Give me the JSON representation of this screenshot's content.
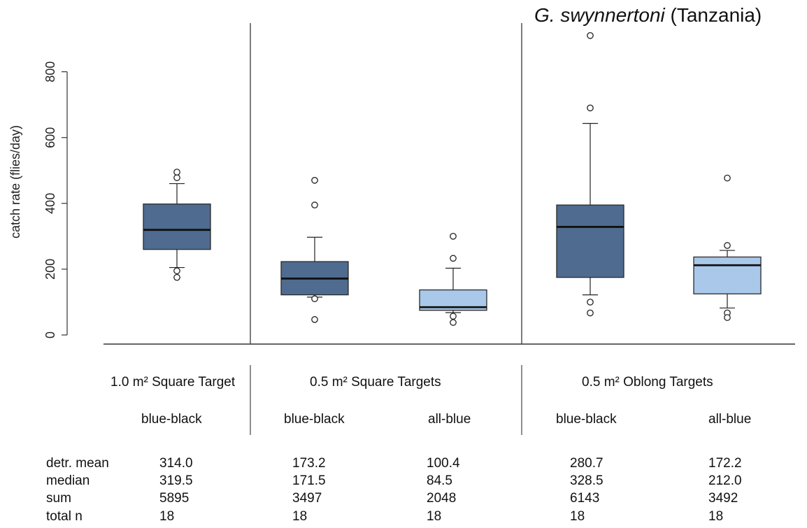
{
  "title": {
    "italic": "G. swynnertoni",
    "plain": " (Tanzania)"
  },
  "chart_data": {
    "type": "box",
    "ylabel": "catch rate (flies/day)",
    "ylim": [
      0,
      900
    ],
    "yticks": [
      0,
      200,
      400,
      600,
      800
    ],
    "groups": [
      {
        "label": "1.0 m² Square Target"
      },
      {
        "label": "0.5 m² Square Targets"
      },
      {
        "label": "0.5 m² Oblong Targets"
      }
    ],
    "boxes": [
      {
        "name": "blue-black",
        "group": 0,
        "color": "#4f6b8f",
        "q1": 260,
        "median": 319.5,
        "q3": 398,
        "whisker_low": 205,
        "whisker_high": 460,
        "outliers": [
          195,
          175,
          478,
          495
        ]
      },
      {
        "name": "blue-black",
        "group": 1,
        "color": "#4f6b8f",
        "q1": 122,
        "median": 171.5,
        "q3": 223,
        "whisker_low": 115,
        "whisker_high": 297,
        "outliers": [
          110,
          47,
          395,
          470
        ]
      },
      {
        "name": "all-blue",
        "group": 1,
        "color": "#a9c8ea",
        "q1": 75,
        "median": 84.5,
        "q3": 137,
        "whisker_low": 68,
        "whisker_high": 203,
        "outliers": [
          57,
          38,
          233,
          300
        ]
      },
      {
        "name": "blue-black",
        "group": 2,
        "color": "#4f6b8f",
        "q1": 175,
        "median": 328.5,
        "q3": 395,
        "whisker_low": 122,
        "whisker_high": 643,
        "outliers": [
          100,
          67,
          690,
          910
        ]
      },
      {
        "name": "all-blue",
        "group": 2,
        "color": "#a9c8ea",
        "q1": 125,
        "median": 212.0,
        "q3": 237,
        "whisker_low": 82,
        "whisker_high": 257,
        "outliers": [
          67,
          53,
          272,
          477
        ]
      }
    ]
  },
  "stats": {
    "rows": [
      {
        "label": "detr. mean",
        "values": [
          "314.0",
          "173.2",
          "100.4",
          "280.7",
          "172.2"
        ]
      },
      {
        "label": "median",
        "values": [
          "319.5",
          "171.5",
          "84.5",
          "328.5",
          "212.0"
        ]
      },
      {
        "label": "sum",
        "values": [
          "5895",
          "3497",
          "2048",
          "6143",
          "3492"
        ]
      },
      {
        "label": "total n",
        "values": [
          "18",
          "18",
          "18",
          "18",
          "18"
        ]
      }
    ]
  }
}
